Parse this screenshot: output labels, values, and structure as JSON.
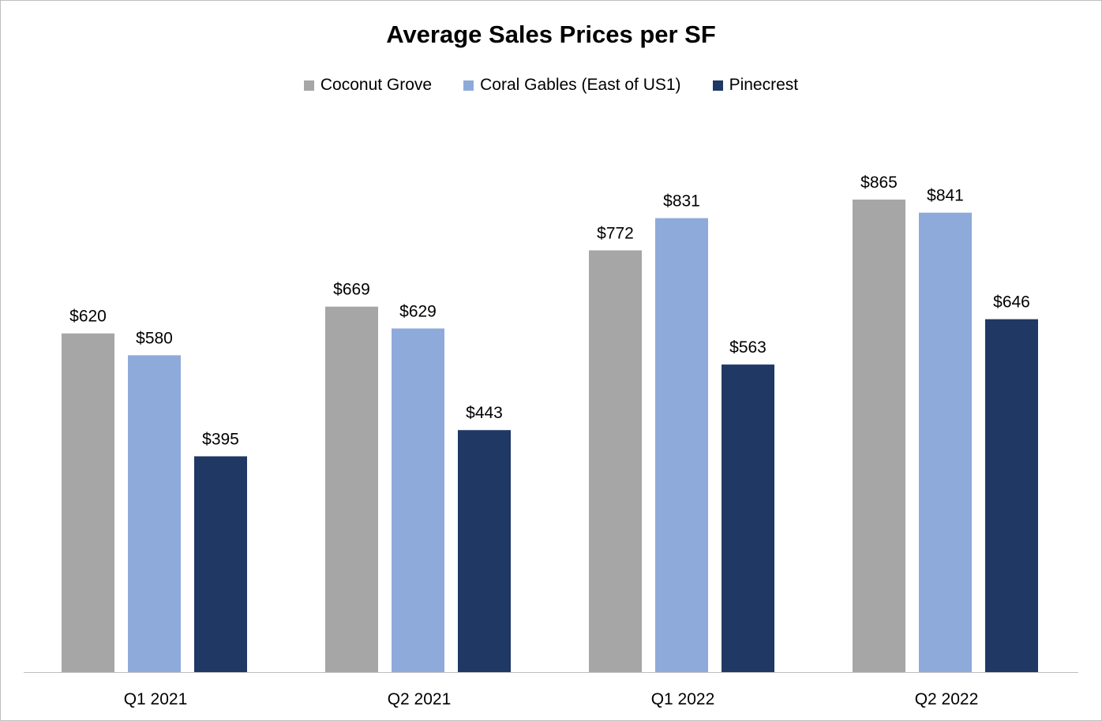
{
  "chart_data": {
    "type": "bar",
    "title": "Average Sales Prices per SF",
    "categories": [
      "Q1 2021",
      "Q2 2021",
      "Q1 2022",
      "Q2 2022"
    ],
    "series": [
      {
        "name": "Coconut Grove",
        "values": [
          620,
          669,
          772,
          865
        ],
        "labels": [
          "$620",
          "$669",
          "$772",
          "$865"
        ],
        "color": "#a6a6a6"
      },
      {
        "name": "Coral Gables (East of US1)",
        "values": [
          580,
          629,
          831,
          841
        ],
        "labels": [
          "$580",
          "$629",
          "$831",
          "$841"
        ],
        "color": "#8eaadb"
      },
      {
        "name": "Pinecrest",
        "values": [
          395,
          443,
          563,
          646
        ],
        "labels": [
          "$395",
          "$443",
          "$563",
          "$646"
        ],
        "color": "#1f3864"
      }
    ],
    "xlabel": "",
    "ylabel": "",
    "ylim": [
      0,
      1000
    ],
    "grid": false,
    "legend_position": "top"
  }
}
